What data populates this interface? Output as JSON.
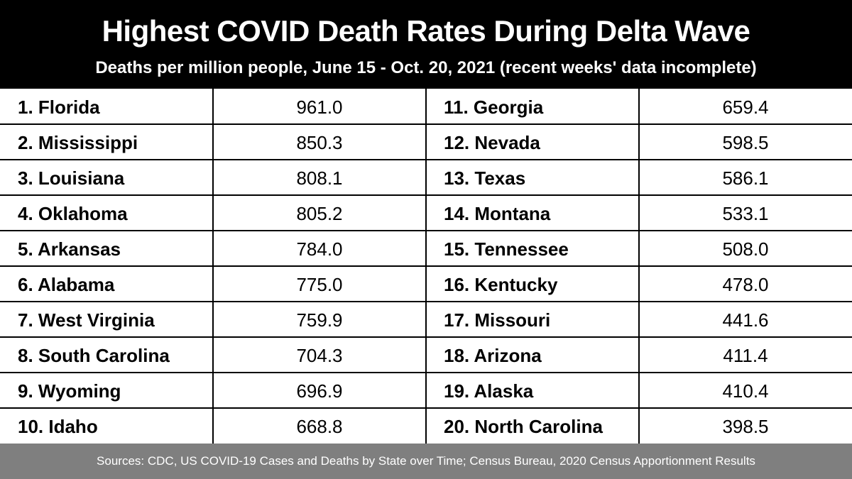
{
  "title": "Highest COVID Death Rates During Delta Wave",
  "subtitle": "Deaths per million people, June 15 - Oct. 20, 2021 (recent weeks' data incomplete)",
  "footer": "Sources: CDC, US COVID-19 Cases and Deaths by State over Time; Census Bureau, 2020 Census Apportionment Results",
  "colors": {
    "header_bg": "#000000",
    "header_text": "#ffffff",
    "footer_bg": "#7f7f7f",
    "footer_text": "#ffffff",
    "grid": "#000000"
  },
  "chart_data": {
    "type": "table",
    "title": "Highest COVID Death Rates During Delta Wave",
    "subtitle": "Deaths per million people, June 15 - Oct. 20, 2021 (recent weeks' data incomplete)",
    "unit": "deaths per million people",
    "rows": [
      {
        "label": "1. Florida",
        "value": "961.0"
      },
      {
        "label": "2. Mississippi",
        "value": "850.3"
      },
      {
        "label": "3. Louisiana",
        "value": "808.1"
      },
      {
        "label": "4. Oklahoma",
        "value": "805.2"
      },
      {
        "label": "5. Arkansas",
        "value": "784.0"
      },
      {
        "label": "6. Alabama",
        "value": "775.0"
      },
      {
        "label": "7. West Virginia",
        "value": "759.9"
      },
      {
        "label": "8. South Carolina",
        "value": "704.3"
      },
      {
        "label": "9. Wyoming",
        "value": "696.9"
      },
      {
        "label": "10. Idaho",
        "value": "668.8"
      },
      {
        "label": "11. Georgia",
        "value": "659.4"
      },
      {
        "label": "12. Nevada",
        "value": "598.5"
      },
      {
        "label": "13. Texas",
        "value": "586.1"
      },
      {
        "label": "14. Montana",
        "value": "533.1"
      },
      {
        "label": "15. Tennessee",
        "value": "508.0"
      },
      {
        "label": "16. Kentucky",
        "value": "478.0"
      },
      {
        "label": "17. Missouri",
        "value": "441.6"
      },
      {
        "label": "18. Arizona",
        "value": "411.4"
      },
      {
        "label": "19. Alaska",
        "value": "410.4"
      },
      {
        "label": "20. North Carolina",
        "value": "398.5"
      }
    ]
  }
}
